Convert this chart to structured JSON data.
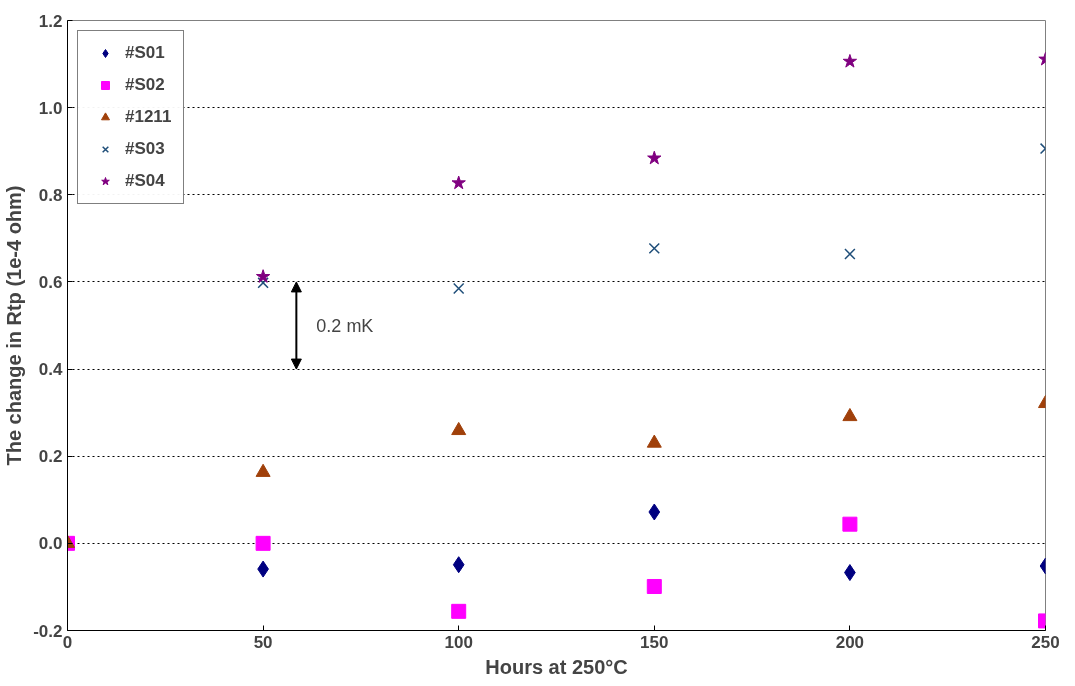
{
  "chart_data": {
    "type": "scatter",
    "xlabel": "Hours at 250°C",
    "ylabel": "The change in Rtp (1e-4 ohm)",
    "x": [
      0,
      50,
      100,
      150,
      200,
      250
    ],
    "series": [
      {
        "name": "#S01",
        "color": "#000080",
        "marker": "diamond",
        "values": [
          null,
          -0.059,
          -0.049,
          0.072,
          -0.067,
          -0.052
        ]
      },
      {
        "name": "#S02",
        "color": "#ff00ff",
        "marker": "square",
        "values": [
          0,
          0.0,
          -0.156,
          -0.099,
          0.044,
          -0.178
        ]
      },
      {
        "name": "#1211",
        "color": "#a0400a",
        "marker": "triangle",
        "values": [
          0,
          0.163,
          0.259,
          0.23,
          0.291,
          0.321
        ]
      },
      {
        "name": "#S03",
        "color": "#1f4e79",
        "marker": "cross",
        "values": [
          null,
          0.598,
          0.585,
          0.677,
          0.664,
          0.906
        ]
      },
      {
        "name": "#S04",
        "color": "#800080",
        "marker": "star",
        "values": [
          null,
          0.612,
          0.827,
          0.884,
          1.106,
          1.111
        ]
      }
    ],
    "xlim": [
      0,
      250
    ],
    "xticks": [
      0,
      50,
      100,
      150,
      200,
      250
    ],
    "ylim": [
      -0.2,
      1.2
    ],
    "yticks": [
      {
        "value": -0.2,
        "label": "-0.2"
      },
      {
        "value": 0,
        "label": "0.0"
      },
      0.2,
      0.4,
      0.6,
      0.8,
      {
        "value": 1,
        "label": "1.0"
      },
      1.2
    ],
    "grid": "y",
    "legend": "top left",
    "annotations": [
      "0.2 mK"
    ]
  }
}
